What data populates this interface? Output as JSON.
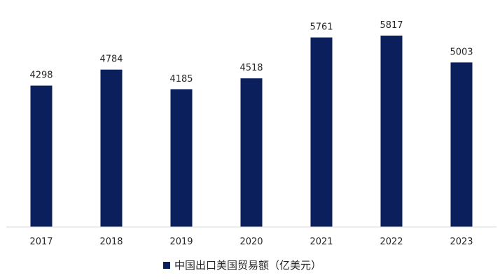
{
  "chart_data": {
    "type": "bar",
    "categories": [
      "2017",
      "2018",
      "2019",
      "2020",
      "2021",
      "2022",
      "2023"
    ],
    "series": [
      {
        "name": "中国出口美国贸易额（亿美元）",
        "values": [
          4298,
          4784,
          4185,
          4518,
          5761,
          5817,
          5003
        ],
        "color": "#0a1f5c"
      }
    ],
    "ylim": [
      0,
      6900
    ],
    "grid": false,
    "legend_position": "bottom",
    "data_labels": true
  }
}
